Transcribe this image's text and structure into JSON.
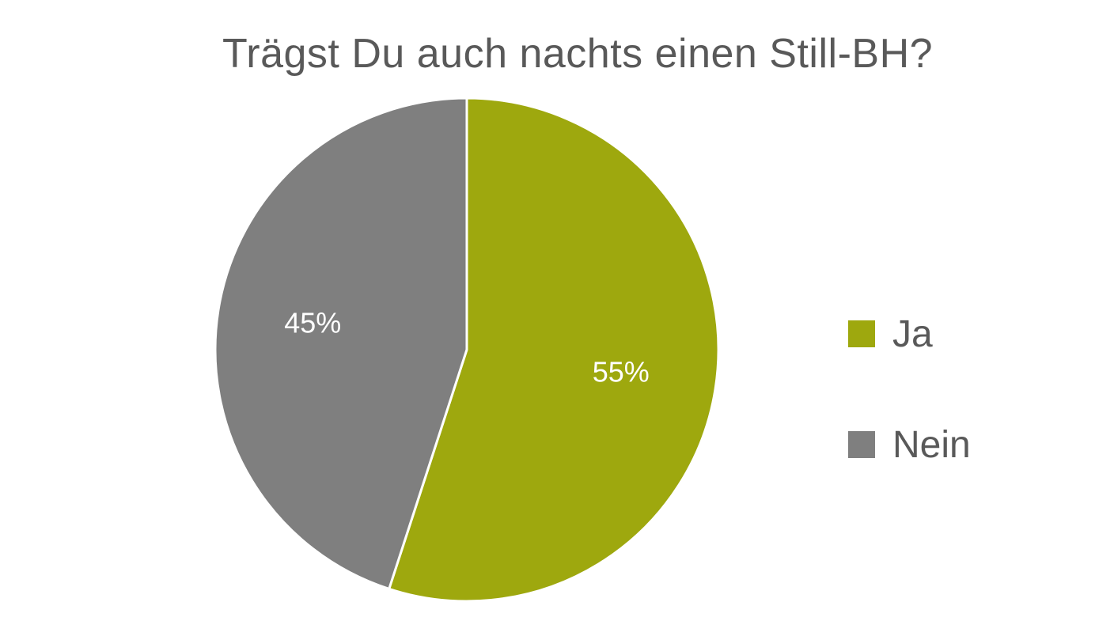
{
  "chart_data": {
    "type": "pie",
    "title": "Trägst Du auch nachts einen Still-BH?",
    "categories": [
      "Ja",
      "Nein"
    ],
    "values": [
      55,
      45
    ],
    "data_labels": [
      "55%",
      "45%"
    ],
    "colors": [
      "#9ea80e",
      "#7f7f7f"
    ],
    "legend_position": "right"
  }
}
